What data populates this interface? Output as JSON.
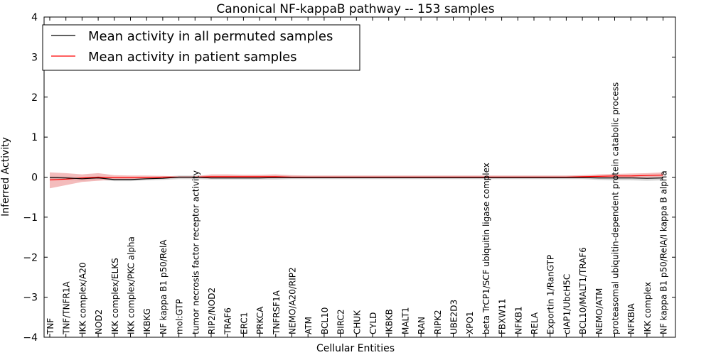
{
  "chart_data": {
    "type": "line",
    "title": "Canonical NF-kappaB pathway -- 153 samples",
    "xlabel": "Cellular Entities",
    "ylabel": "Inferred Activity",
    "ylim": [
      -4,
      4
    ],
    "yticks": [
      4,
      3,
      2,
      1,
      0,
      -1,
      -2,
      -3,
      -4
    ],
    "ytick_labels": [
      "4",
      "3",
      "2",
      "1",
      "0",
      "−1",
      "−2",
      "−3",
      "−4"
    ],
    "legend_position": "top-left",
    "categories": [
      "TNF",
      "TNF/TNFR1A",
      "IKK complex/A20",
      "NOD2",
      "IKK complex/ELKS",
      "IKK complex/PKC alpha",
      "IKBKG",
      "NF kappa B1 p50/RelA",
      "mol:GTP",
      "tumor necrosis factor receptor activity",
      "RIP2/NOD2",
      "TRAF6",
      "ERC1",
      "PRKCA",
      "TNFRSF1A",
      "NEMO/A20/RIP2",
      "ATM",
      "BCL10",
      "BIRC2",
      "CHUK",
      "CYLD",
      "IKBKB",
      "MALT1",
      "RAN",
      "RIPK2",
      "UBE2D3",
      "XPO1",
      "beta TrCP1/SCF ubiquitin ligase complex",
      "FBXW11",
      "NFKB1",
      "RELA",
      "Exportin 1/RanGTP",
      "cIAP1/UbcH5C",
      "BCL10/MALT1/TRAF6",
      "NEMO/ATM",
      "proteasomal ubiquitin-dependent protein catabolic process",
      "NFKBIA",
      "IKK complex",
      "NF kappa B1 p50/RelA/I kappa B alpha"
    ],
    "series": [
      {
        "name": "Mean activity in all permuted samples",
        "color": "#000000",
        "band_color": "#c8c8c8",
        "values": [
          -0.01,
          -0.02,
          -0.04,
          -0.02,
          -0.06,
          -0.06,
          -0.04,
          -0.03,
          0.0,
          0.0,
          -0.02,
          -0.02,
          -0.02,
          -0.02,
          -0.01,
          -0.01,
          -0.01,
          -0.01,
          -0.01,
          -0.01,
          -0.01,
          -0.01,
          -0.01,
          -0.01,
          -0.01,
          -0.01,
          -0.01,
          -0.01,
          -0.01,
          -0.01,
          -0.01,
          -0.01,
          -0.01,
          -0.01,
          -0.02,
          -0.02,
          -0.02,
          -0.03,
          -0.02
        ],
        "lower": [
          -0.06,
          -0.07,
          -0.09,
          -0.07,
          -0.1,
          -0.1,
          -0.08,
          -0.07,
          -0.05,
          -0.05,
          -0.06,
          -0.06,
          -0.06,
          -0.06,
          -0.06,
          -0.05,
          -0.05,
          -0.05,
          -0.05,
          -0.05,
          -0.05,
          -0.05,
          -0.05,
          -0.05,
          -0.05,
          -0.05,
          -0.05,
          -0.05,
          -0.05,
          -0.05,
          -0.05,
          -0.05,
          -0.05,
          -0.05,
          -0.07,
          -0.08,
          -0.08,
          -0.09,
          -0.08
        ],
        "upper": [
          0.03,
          0.02,
          0.0,
          0.02,
          -0.02,
          -0.02,
          0.0,
          0.01,
          0.04,
          0.04,
          0.03,
          0.03,
          0.03,
          0.03,
          0.03,
          0.03,
          0.03,
          0.03,
          0.03,
          0.03,
          0.03,
          0.03,
          0.03,
          0.03,
          0.03,
          0.03,
          0.03,
          0.03,
          0.03,
          0.03,
          0.03,
          0.03,
          0.03,
          0.03,
          0.02,
          0.02,
          0.02,
          0.02,
          0.02
        ]
      },
      {
        "name": "Mean activity in patient samples",
        "color": "#ff0000",
        "band_color": "#f0a0a0",
        "values": [
          -0.07,
          -0.05,
          -0.02,
          0.0,
          -0.01,
          -0.01,
          -0.01,
          0.0,
          0.0,
          0.0,
          0.01,
          0.01,
          0.01,
          0.01,
          0.01,
          0.0,
          0.0,
          0.0,
          0.0,
          0.0,
          0.0,
          0.0,
          0.0,
          0.0,
          0.0,
          0.0,
          0.0,
          0.0,
          0.0,
          0.0,
          0.0,
          0.0,
          0.0,
          0.01,
          0.02,
          0.03,
          0.03,
          0.04,
          0.05
        ],
        "lower": [
          -0.28,
          -0.2,
          -0.12,
          -0.09,
          -0.06,
          -0.05,
          -0.04,
          -0.03,
          -0.02,
          -0.02,
          -0.03,
          -0.02,
          -0.02,
          -0.02,
          -0.02,
          -0.02,
          -0.02,
          -0.02,
          -0.02,
          -0.02,
          -0.02,
          -0.02,
          -0.02,
          -0.02,
          -0.02,
          -0.02,
          -0.02,
          -0.02,
          -0.02,
          -0.02,
          -0.02,
          -0.02,
          -0.02,
          -0.02,
          -0.02,
          -0.02,
          -0.02,
          -0.01,
          0.0
        ],
        "upper": [
          0.12,
          0.1,
          0.07,
          0.1,
          0.05,
          0.04,
          0.04,
          0.03,
          0.02,
          0.02,
          0.07,
          0.07,
          0.06,
          0.06,
          0.07,
          0.05,
          0.04,
          0.04,
          0.04,
          0.04,
          0.04,
          0.04,
          0.04,
          0.04,
          0.04,
          0.04,
          0.04,
          0.04,
          0.04,
          0.04,
          0.04,
          0.04,
          0.04,
          0.05,
          0.07,
          0.08,
          0.09,
          0.1,
          0.12
        ]
      }
    ]
  }
}
